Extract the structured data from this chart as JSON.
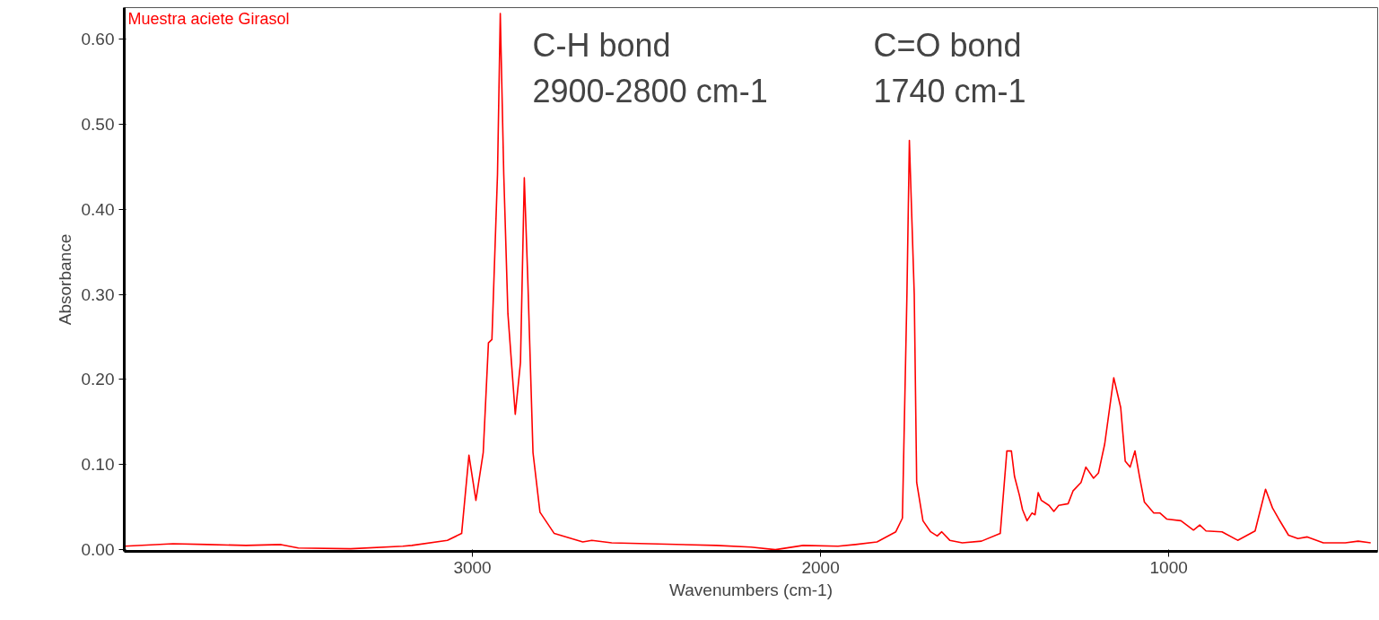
{
  "chart_data": {
    "type": "line",
    "xlabel": "Wavenumbers (cm-1)",
    "ylabel": "Absorbance",
    "x": [
      4000,
      3860,
      3760,
      3650,
      3550,
      3500,
      3350,
      3200,
      3174,
      3072,
      3031,
      3010,
      2990,
      2969,
      2954,
      2944,
      2928,
      2920,
      2910,
      2898,
      2877,
      2862,
      2851,
      2841,
      2826,
      2806,
      2765,
      2683,
      2657,
      2600,
      2300,
      2200,
      2130,
      2050,
      1950,
      1900,
      1838,
      1784,
      1765,
      1752,
      1745,
      1731,
      1724,
      1706,
      1684,
      1665,
      1652,
      1629,
      1593,
      1538,
      1484,
      1465,
      1452,
      1443,
      1429,
      1420,
      1407,
      1393,
      1384,
      1375,
      1366,
      1344,
      1330,
      1316,
      1289,
      1275,
      1252,
      1238,
      1216,
      1202,
      1184,
      1158,
      1138,
      1125,
      1111,
      1097,
      1084,
      1070,
      1043,
      1025,
      1006,
      965,
      929,
      911,
      893,
      847,
      802,
      752,
      722,
      702,
      684,
      656,
      629,
      602,
      556,
      493,
      456,
      420
    ],
    "series": [
      {
        "name": "Muestra aciete Girasol",
        "color": "#ff0000",
        "values": [
          0.004,
          0.007,
          0.006,
          0.005,
          0.006,
          0.002,
          0.001,
          0.004,
          0.005,
          0.011,
          0.019,
          0.111,
          0.058,
          0.114,
          0.243,
          0.247,
          0.441,
          0.63,
          0.441,
          0.277,
          0.159,
          0.22,
          0.437,
          0.318,
          0.114,
          0.044,
          0.019,
          0.009,
          0.011,
          0.008,
          0.005,
          0.003,
          0.0,
          0.005,
          0.004,
          0.006,
          0.009,
          0.021,
          0.037,
          0.3,
          0.481,
          0.3,
          0.079,
          0.034,
          0.021,
          0.016,
          0.021,
          0.011,
          0.008,
          0.01,
          0.019,
          0.116,
          0.116,
          0.086,
          0.064,
          0.047,
          0.034,
          0.043,
          0.041,
          0.067,
          0.058,
          0.052,
          0.045,
          0.052,
          0.054,
          0.069,
          0.079,
          0.097,
          0.084,
          0.09,
          0.124,
          0.202,
          0.167,
          0.104,
          0.097,
          0.116,
          0.086,
          0.056,
          0.043,
          0.043,
          0.036,
          0.034,
          0.023,
          0.029,
          0.022,
          0.021,
          0.011,
          0.022,
          0.071,
          0.049,
          0.036,
          0.017,
          0.013,
          0.015,
          0.008,
          0.008,
          0.01,
          0.008
        ]
      }
    ],
    "xlim": [
      4000,
      400
    ],
    "ylim": [
      -0.002,
      0.637
    ],
    "xticks": [
      3000,
      2000,
      1000
    ],
    "yticks": [
      {
        "value": 0,
        "label": "0.00"
      },
      {
        "value": 0.1,
        "label": "0.10"
      },
      {
        "value": 0.2,
        "label": "0.20"
      },
      {
        "value": 0.3,
        "label": "0.30"
      },
      {
        "value": 0.4,
        "label": "0.40"
      },
      {
        "value": 0.5,
        "label": "0.50"
      },
      {
        "value": 0.6,
        "label": "0.60"
      }
    ],
    "annotations": [
      "C-H  bond\n2900-2800 cm-1",
      "C=O  bond\n1740 cm-1"
    ],
    "grid": false,
    "legend": "top left",
    "marker": "none",
    "line_style": "solid"
  }
}
